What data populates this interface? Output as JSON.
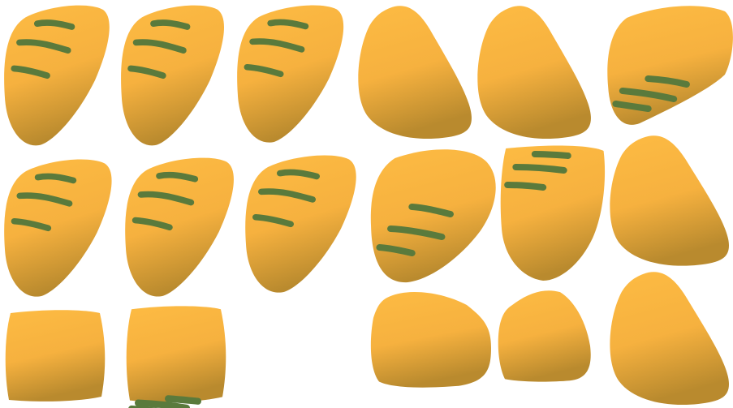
{
  "theme": {
    "background": "#ffffff",
    "tile_light": "#fdbb43",
    "tile_mid": "#f6b13f",
    "tile_dark": "#b98a2e",
    "stripe": "#5a7a3c"
  },
  "board": {
    "rows": [
      {
        "row": 1,
        "tiles": [
          {
            "shape": "teardrop-right",
            "stripes": 3
          },
          {
            "shape": "teardrop-right",
            "stripes": 3
          },
          {
            "shape": "teardrop-right",
            "stripes": 3
          },
          {
            "shape": "teardrop-left",
            "stripes": 0
          },
          {
            "shape": "teardrop-left",
            "stripes": 0
          },
          {
            "shape": "wedge",
            "stripes": 3
          }
        ]
      },
      {
        "row": 2,
        "tiles": [
          {
            "shape": "teardrop-right",
            "stripes": 3
          },
          {
            "shape": "teardrop-right",
            "stripes": 3
          },
          {
            "shape": "teardrop-right",
            "stripes": 3
          },
          {
            "shape": "blob",
            "stripes": 3
          },
          {
            "shape": "blob-tall",
            "stripes": 3
          },
          {
            "shape": "teardrop-left",
            "stripes": 0
          }
        ]
      },
      {
        "row": 3,
        "tiles": [
          {
            "shape": "block",
            "stripes": 0
          },
          {
            "shape": "block",
            "stripes": 3
          },
          null,
          {
            "shape": "blob-wide",
            "stripes": 0
          },
          {
            "shape": "pentagon",
            "stripes": 0
          },
          {
            "shape": "teardrop-left",
            "stripes": 0
          }
        ]
      }
    ]
  }
}
